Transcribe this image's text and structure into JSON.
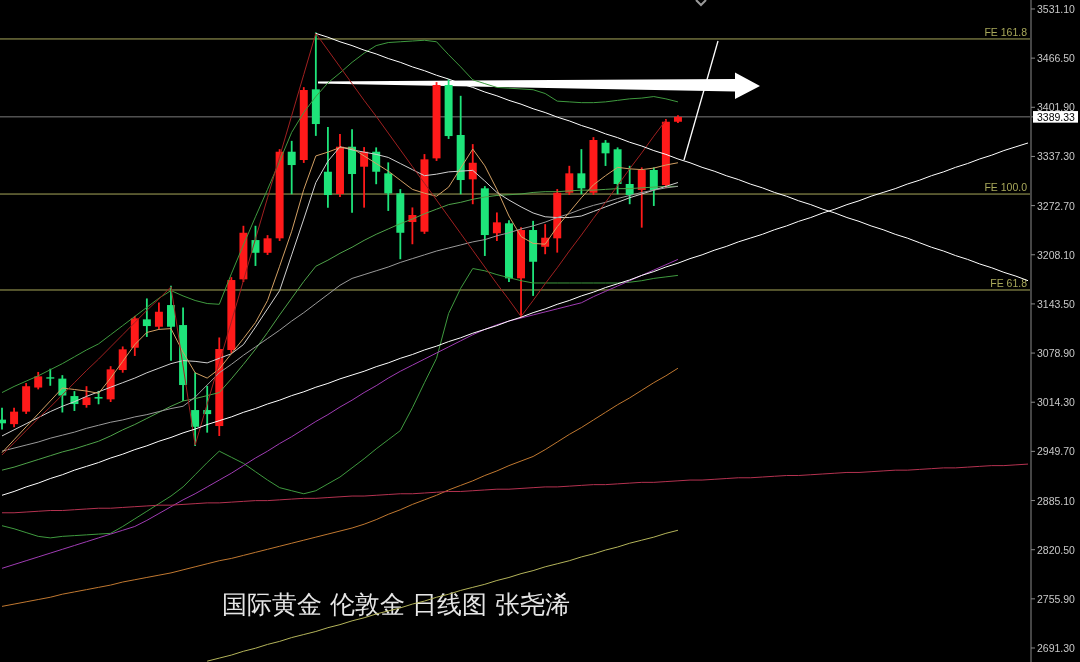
{
  "chart_data": {
    "type": "candlestick",
    "title": "国际黄金 伦敦金 日线图 张尧浠",
    "categories": [
      null,
      null,
      null,
      null,
      null,
      null,
      null,
      null,
      null,
      null,
      null,
      null,
      null,
      null,
      null,
      null,
      null,
      null,
      null,
      null,
      null,
      null,
      null,
      null,
      null,
      null,
      null,
      null,
      null,
      null,
      null,
      null,
      null,
      null,
      null,
      null,
      null,
      null,
      null,
      null,
      null,
      null,
      null,
      null,
      null,
      null,
      null,
      null,
      null,
      null,
      null,
      null,
      null,
      null,
      null,
      null,
      null,
      null,
      null,
      null,
      null,
      null,
      null,
      null,
      null,
      null,
      null,
      null,
      null,
      null,
      null,
      null,
      null,
      null,
      null,
      null,
      null,
      null,
      null,
      null,
      null,
      null,
      null,
      null,
      null,
      null
    ],
    "ohlc": [
      [
        2991.4,
        3006.0,
        2979.5,
        2986.6
      ],
      [
        2985.5,
        3006.0,
        2982.6,
        3001.9
      ],
      [
        3001.9,
        3038.3,
        3000.1,
        3035.3
      ],
      [
        3033.6,
        3052.9,
        3032.4,
        3048.3
      ],
      [
        3047.1,
        3057.1,
        3037.1,
        3045.3
      ],
      [
        3045.3,
        3048.7,
        3002.0,
        3023.1
      ],
      [
        3022.4,
        3027.7,
        3004.0,
        3011.9
      ],
      [
        3010.6,
        3034.2,
        3008.3,
        3020.7
      ],
      [
        3021.1,
        3028.0,
        3012.8,
        3019.1
      ],
      [
        3018.1,
        3060.5,
        3015.8,
        3057.5
      ],
      [
        3056.6,
        3086.4,
        3054.3,
        3083.8
      ],
      [
        3085.9,
        3126.6,
        3076.3,
        3124.5
      ],
      [
        3123.2,
        3149.5,
        3101.3,
        3114.4
      ],
      [
        3113.5,
        3144.2,
        3111.8,
        3133.2
      ],
      [
        3142.0,
        3166.1,
        3070.0,
        3113.5
      ],
      [
        3115.7,
        3137.7,
        3017.1,
        3036.9
      ],
      [
        3004.0,
        3052.2,
        2958.0,
        2982.0
      ],
      [
        3004.0,
        3034.6,
        2975.5,
        2998.7
      ],
      [
        2983.0,
        3098.2,
        2971.1,
        3084.2
      ],
      [
        3082.9,
        3177.5,
        3080.3,
        3174.9
      ],
      [
        3175.8,
        3245.0,
        3173.5,
        3237.0
      ],
      [
        3227.4,
        3245.0,
        3194.6,
        3210.7
      ],
      [
        3210.7,
        3232.7,
        3209.0,
        3229.7
      ],
      [
        3229.7,
        3345.7,
        3227.4,
        3343.5
      ],
      [
        3343.5,
        3356.6,
        3288.8,
        3326.0
      ],
      [
        3332.6,
        3427.2,
        3330.0,
        3424.6
      ],
      [
        3425.5,
        3499.1,
        3365.5,
        3379.9
      ],
      [
        3317.2,
        3374.7,
        3271.2,
        3286.6
      ],
      [
        3287.9,
        3365.5,
        3285.3,
        3350.1
      ],
      [
        3350.1,
        3372.0,
        3264.6,
        3314.2
      ],
      [
        3323.8,
        3348.4,
        3271.2,
        3343.5
      ],
      [
        3343.5,
        3348.0,
        3302.0,
        3317.2
      ],
      [
        3315.1,
        3328.3,
        3266.9,
        3288.8
      ],
      [
        3288.8,
        3293.2,
        3203.4,
        3237.0
      ],
      [
        3251.1,
        3269.1,
        3223.1,
        3260.3
      ],
      [
        3238.4,
        3339.2,
        3236.7,
        3333.5
      ],
      [
        3334.8,
        3433.8,
        3332.6,
        3431.2
      ],
      [
        3431.2,
        3437.7,
        3361.5,
        3364.1
      ],
      [
        3365.5,
        3415.8,
        3288.8,
        3306.3
      ],
      [
        3307.2,
        3352.3,
        3275.7,
        3329.0
      ],
      [
        3295.4,
        3297.1,
        3207.7,
        3234.0
      ],
      [
        3236.3,
        3262.5,
        3227.4,
        3250.7
      ],
      [
        3249.4,
        3252.4,
        3173.5,
        3177.1
      ],
      [
        3177.1,
        3243.2,
        3126.6,
        3240.6
      ],
      [
        3240.6,
        3251.5,
        3155.2,
        3198.9
      ],
      [
        3218.6,
        3247.2,
        3210.0,
        3230.5
      ],
      [
        3229.7,
        3293.2,
        3212.1,
        3289.6
      ],
      [
        3289.6,
        3323.8,
        3287.9,
        3315.1
      ],
      [
        3315.1,
        3345.7,
        3288.8,
        3295.4
      ],
      [
        3289.6,
        3361.5,
        3287.9,
        3358.9
      ],
      [
        3355.3,
        3357.6,
        3326.0,
        3341.4
      ],
      [
        3346.7,
        3348.0,
        3288.8,
        3301.1
      ],
      [
        3301.1,
        3323.8,
        3275.7,
        3286.6
      ],
      [
        3293.2,
        3321.7,
        3244.9,
        3319.5
      ],
      [
        3319.5,
        3321.7,
        3273.4,
        3293.2
      ],
      [
        3299.7,
        3385.2,
        3297.1,
        3382.9
      ],
      [
        3382.9,
        3390.4,
        3382.5,
        3389.33
      ],
      null,
      null,
      null,
      null,
      null,
      null,
      null,
      null,
      null,
      null,
      null,
      null,
      null,
      null,
      null,
      null,
      null,
      null,
      null,
      null,
      null,
      null,
      null,
      null,
      null,
      null,
      null,
      null,
      null
    ],
    "colors": [
      "#1ee47a",
      "#ff1a1a",
      "#ff1a1a",
      "#ff1a1a",
      "#1ee47a",
      "#1ee47a",
      "#1ee47a",
      "#ff1a1a",
      "#1ee47a",
      "#ff1a1a",
      "#ff1a1a",
      "#ff1a1a",
      "#1ee47a",
      "#ff1a1a",
      "#1ee47a",
      "#1ee47a",
      "#1ee47a",
      "#1ee47a",
      "#ff1a1a",
      "#ff1a1a",
      "#ff1a1a",
      "#1ee47a",
      "#ff1a1a",
      "#ff1a1a",
      "#1ee47a",
      "#ff1a1a",
      "#1ee47a",
      "#1ee47a",
      "#ff1a1a",
      "#1ee47a",
      "#ff1a1a",
      "#1ee47a",
      "#1ee47a",
      "#1ee47a",
      "#ff1a1a",
      "#ff1a1a",
      "#ff1a1a",
      "#1ee47a",
      "#1ee47a",
      "#ff1a1a",
      "#1ee47a",
      "#ff1a1a",
      "#1ee47a",
      "#ff1a1a",
      "#1ee47a",
      "#ff1a1a",
      "#ff1a1a",
      "#ff1a1a",
      "#1ee47a",
      "#ff1a1a",
      "#1ee47a",
      "#1ee47a",
      "#1ee47a",
      "#ff1a1a",
      "#1ee47a",
      "#ff1a1a",
      "#ff1a1a",
      null,
      null,
      null,
      null,
      null,
      null,
      null,
      null,
      null,
      null,
      null,
      null,
      null,
      null,
      null,
      null,
      null,
      null,
      null,
      null,
      null,
      null,
      null,
      null,
      null,
      null,
      null,
      null,
      null
    ],
    "series": [
      {
        "type": "line",
        "color": "#3f9a3f",
        "values": [
          3027,
          3035,
          3042,
          3049,
          3057,
          3065,
          3074,
          3083,
          3091,
          3103,
          3115,
          3127,
          3139,
          3151,
          3161,
          3154,
          3148,
          3144,
          3143,
          3183,
          3221,
          3258,
          3294,
          3331,
          3369,
          3395,
          3416,
          3434,
          3447,
          3461,
          3473,
          3483,
          3487,
          3488,
          3489,
          3490,
          3488,
          3471,
          3455,
          3438,
          3433,
          3428,
          3427,
          3426,
          3425,
          3420,
          3410,
          3409,
          3408,
          3408,
          3409,
          3411,
          3413,
          3414,
          3416,
          3413,
          3409,
          null,
          null,
          null,
          null,
          null,
          null,
          null,
          null,
          null,
          null,
          null,
          null,
          null,
          null,
          null,
          null,
          null,
          null,
          null,
          null,
          null,
          null,
          null,
          null,
          null,
          null,
          null,
          null,
          null
        ]
      },
      {
        "type": "line",
        "color": "#3f9a3f",
        "values": [
          2852,
          2848,
          2843,
          2838,
          2836,
          2838,
          2839,
          2840,
          2841,
          2842,
          2851,
          2861,
          2871,
          2881,
          2891,
          2903,
          2919,
          2935,
          2950,
          2942,
          2934,
          2923,
          2912,
          2902,
          2898,
          2894,
          2898,
          2907,
          2916,
          2928,
          2940,
          2953,
          2965,
          2977,
          3007,
          3040,
          3072,
          3131,
          3164,
          3190,
          3187,
          3182,
          3178,
          3174,
          3171,
          3171,
          3171,
          3171,
          3171,
          3171,
          3171,
          3171,
          3172,
          3174,
          3177,
          3179,
          3181,
          null,
          null,
          null,
          null,
          null,
          null,
          null,
          null,
          null,
          null,
          null,
          null,
          null,
          null,
          null,
          null,
          null,
          null,
          null,
          null,
          null,
          null,
          null,
          null,
          null,
          null,
          null,
          null,
          null
        ]
      },
      {
        "type": "line",
        "color": "#4fa34a",
        "values": [
          2925,
          2929,
          2934,
          2939,
          2944,
          2949,
          2953,
          2958,
          2963,
          2970,
          2978,
          2985,
          2993,
          3001,
          3009,
          3016,
          3019,
          3023,
          3027,
          3045,
          3064,
          3084,
          3106,
          3129,
          3151,
          3173,
          3193,
          3201,
          3210,
          3218,
          3227,
          3235,
          3242,
          3249,
          3255,
          3262,
          3268,
          3274,
          3277,
          3281,
          3284,
          3286,
          3287,
          3288,
          3290,
          3291,
          3291,
          3292,
          3293,
          3293,
          3294,
          3295,
          3295,
          3296,
          3297,
          3298,
          3298,
          null,
          null,
          null,
          null,
          null,
          null,
          null,
          null,
          null,
          null,
          null,
          null,
          null,
          null,
          null,
          null,
          null,
          null,
          null,
          null,
          null,
          null,
          null,
          null,
          null,
          null,
          null,
          null,
          null
        ]
      },
      {
        "type": "line",
        "color": "#d0d0d0",
        "values": [
          2970,
          2978,
          2986,
          2994,
          3002,
          3009,
          3015,
          3022,
          3028,
          3034,
          3040,
          3046,
          3053,
          3059,
          3065,
          3069,
          3068,
          3066,
          3072,
          3078,
          3090,
          3113,
          3137,
          3161,
          3208,
          3255,
          3303,
          3331,
          3350,
          3346,
          3343,
          3340,
          3336,
          3328,
          3320,
          3312,
          3314,
          3317,
          3318,
          3319,
          3305,
          3290,
          3280,
          3271,
          3263,
          3258,
          3257,
          3257,
          3259,
          3265,
          3271,
          3277,
          3283,
          3288,
          3293,
          3298,
          3303,
          null,
          null,
          null,
          null,
          null,
          null,
          null,
          null,
          null,
          null,
          null,
          null,
          null,
          null,
          null,
          null,
          null,
          null,
          null,
          null,
          null,
          null,
          null,
          null,
          null,
          null,
          null,
          null,
          null
        ]
      },
      {
        "type": "line",
        "color": "#9a9a9a",
        "values": [
          2950,
          2954,
          2958,
          2962,
          2967,
          2971,
          2975,
          2980,
          2984,
          2988,
          2991,
          2995,
          2998,
          3002,
          3006,
          3009,
          3021,
          3037,
          3053,
          3064,
          3076,
          3087,
          3098,
          3109,
          3121,
          3132,
          3144,
          3156,
          3168,
          3177,
          3182,
          3187,
          3192,
          3198,
          3203,
          3208,
          3213,
          3217,
          3221,
          3225,
          3228,
          3233,
          3237,
          3242,
          3246,
          3251,
          3257,
          3262,
          3268,
          3273,
          3277,
          3282,
          3286,
          3290,
          3293,
          3296,
          3298,
          null,
          null,
          null,
          null,
          null,
          null,
          null,
          null,
          null,
          null,
          null,
          null,
          null,
          null,
          null,
          null,
          null,
          null,
          null,
          null,
          null,
          null,
          null,
          null,
          null,
          null,
          null,
          null,
          null
        ]
      },
      {
        "type": "line",
        "color": "#d2a064",
        "values": [
          2948,
          2965,
          2982,
          2999,
          3016,
          3033,
          3031,
          3029,
          3026,
          3046,
          3068,
          3090,
          3106,
          3110,
          3111,
          3080,
          3053,
          3046,
          3058,
          3078,
          3098,
          3119,
          3148,
          3193,
          3239,
          3294,
          3338,
          3343,
          3349,
          3348,
          3338,
          3328,
          3318,
          3306,
          3294,
          3289,
          3285,
          3297,
          3322,
          3347,
          3325,
          3294,
          3259,
          3232,
          3223,
          3222,
          3245,
          3264,
          3283,
          3300,
          3312,
          3323,
          3321,
          3320,
          3322,
          3326,
          3329,
          null,
          null,
          null,
          null,
          null,
          null,
          null,
          null,
          null,
          null,
          null,
          null,
          null,
          null,
          null,
          null,
          null,
          null,
          null,
          null,
          null,
          null,
          null,
          null,
          null,
          null,
          null,
          null,
          null
        ]
      },
      {
        "type": "line",
        "color": "#a03cb4",
        "values": [
          2796,
          2801,
          2806,
          2811,
          2816,
          2821,
          2826,
          2831,
          2836,
          2841,
          2846,
          2851,
          2859,
          2868,
          2877,
          2886,
          2894,
          2903,
          2912,
          2921,
          2931,
          2941,
          2950,
          2960,
          2969,
          2979,
          2989,
          2998,
          3008,
          3017,
          3027,
          3036,
          3046,
          3055,
          3063,
          3071,
          3079,
          3087,
          3095,
          3103,
          3110,
          3116,
          3121,
          3125,
          3129,
          3133,
          3137,
          3141,
          3145,
          3153,
          3160,
          3167,
          3174,
          3181,
          3188,
          3195,
          3202,
          null,
          null,
          null,
          null,
          null,
          null,
          null,
          null,
          null,
          null,
          null,
          null,
          null,
          null,
          null,
          null,
          null,
          null,
          null,
          null,
          null,
          null,
          null,
          null,
          null,
          null,
          null,
          null,
          null
        ]
      },
      {
        "type": "line",
        "color": "#c07830",
        "values": [
          2746,
          2749,
          2752,
          2755,
          2758,
          2762,
          2765,
          2768,
          2771,
          2774,
          2778,
          2781,
          2784,
          2787,
          2790,
          2794,
          2798,
          2802,
          2806,
          2809,
          2813,
          2817,
          2821,
          2825,
          2829,
          2833,
          2837,
          2841,
          2845,
          2849,
          2854,
          2860,
          2867,
          2873,
          2880,
          2886,
          2892,
          2899,
          2905,
          2911,
          2918,
          2924,
          2931,
          2937,
          2943,
          2952,
          2962,
          2972,
          2981,
          2991,
          3001,
          3011,
          3020,
          3030,
          3040,
          3049,
          3059,
          null,
          null,
          null,
          null,
          null,
          null,
          null,
          null,
          null,
          null,
          null,
          null,
          null,
          null,
          null,
          null,
          null,
          null,
          null,
          null,
          null,
          null,
          null,
          null,
          null,
          null,
          null,
          null,
          null
        ]
      },
      {
        "type": "line",
        "color": "#b4b45a",
        "values": [
          null,
          null,
          null,
          null,
          null,
          null,
          null,
          null,
          null,
          null,
          null,
          null,
          null,
          null,
          null,
          null,
          null,
          2674,
          2678,
          2682,
          2687,
          2691,
          2696,
          2700,
          2705,
          2709,
          2713,
          2718,
          2722,
          2727,
          2731,
          2736,
          2740,
          2744,
          2749,
          2753,
          2758,
          2762,
          2767,
          2771,
          2775,
          2780,
          2784,
          2789,
          2793,
          2798,
          2802,
          2806,
          2811,
          2815,
          2820,
          2824,
          2829,
          2833,
          2837,
          2842,
          2846,
          null,
          null,
          null,
          null,
          null,
          null,
          null,
          null,
          null,
          null,
          null,
          null,
          null,
          null,
          null,
          null,
          null,
          null,
          null,
          null,
          null,
          null,
          null,
          null,
          null,
          null,
          null,
          null,
          null
        ]
      },
      {
        "type": "line",
        "color": "#b43250",
        "values": [
          2869,
          2869,
          2870,
          2871,
          2872,
          2872,
          2873,
          2874,
          2875,
          2875,
          2876,
          2877,
          2878,
          2879,
          2879,
          2880,
          2881,
          2882,
          2882,
          2883,
          2884,
          2885,
          2885,
          2886,
          2887,
          2888,
          2888,
          2889,
          2890,
          2891,
          2891,
          2892,
          2893,
          2894,
          2894,
          2895,
          2896,
          2897,
          2897,
          2898,
          2899,
          2900,
          2900,
          2901,
          2902,
          2903,
          2903,
          2904,
          2905,
          2906,
          2906,
          2907,
          2908,
          2909,
          2909,
          2910,
          2911,
          2912,
          2912,
          2913,
          2914,
          2915,
          2915,
          2916,
          2917,
          2918,
          2918,
          2919,
          2920,
          2921,
          2922,
          2922,
          2923,
          2924,
          2925,
          2925,
          2926,
          2927,
          2928,
          2928,
          2929,
          2930,
          2931,
          2931,
          2932,
          2933
        ]
      },
      {
        "type": "line",
        "color": "#a02020",
        "values": [
          2945,
          2961,
          2977,
          2993,
          3008,
          3024,
          3040,
          3056,
          3071,
          3087,
          3103,
          3119,
          3135,
          3150,
          3166,
          3062,
          2958,
          3012,
          3066,
          3120,
          3174,
          3229,
          3283,
          3337,
          3391,
          3445,
          3499,
          3477,
          3455,
          3433,
          3411,
          3390,
          3368,
          3346,
          3324,
          3302,
          3280,
          3258,
          3236,
          3214,
          3192,
          3170,
          3149,
          3127,
          3148,
          3170,
          3191,
          3213,
          3234,
          3256,
          3277,
          3299,
          3321,
          3342,
          3364,
          3385,
          null,
          null,
          null,
          null,
          null,
          null,
          null,
          null,
          null,
          null,
          null,
          null,
          null,
          null,
          null,
          null,
          null,
          null,
          null,
          null,
          null,
          null,
          null,
          null,
          null,
          null,
          null,
          null,
          null,
          null
        ]
      },
      {
        "type": "line",
        "color": "#ffffff",
        "values": [
          2892,
          2897,
          2903,
          2908,
          2914,
          2919,
          2925,
          2930,
          2935,
          2941,
          2946,
          2952,
          2957,
          2963,
          2968,
          2974,
          2979,
          2985,
          2990,
          2995,
          3001,
          3006,
          3012,
          3017,
          3023,
          3028,
          3034,
          3039,
          3045,
          3050,
          3055,
          3061,
          3066,
          3072,
          3077,
          3083,
          3088,
          3094,
          3099,
          3105,
          3110,
          3115,
          3121,
          3126,
          3132,
          3137,
          3143,
          3148,
          3154,
          3159,
          3165,
          3170,
          3175,
          3181,
          3186,
          3192,
          3197,
          3203,
          3208,
          3214,
          3219,
          3225,
          3230,
          3235,
          3241,
          3246,
          3252,
          3257,
          3263,
          3268,
          3274,
          3279,
          3285,
          3290,
          3295,
          3301,
          3306,
          3312,
          3317,
          3323,
          3328,
          3334,
          3339,
          3345,
          3350,
          3355
        ]
      },
      {
        "type": "line",
        "color": "#ffffff",
        "values": [
          null,
          null,
          null,
          null,
          null,
          null,
          null,
          null,
          null,
          null,
          null,
          null,
          null,
          null,
          null,
          null,
          null,
          null,
          null,
          null,
          null,
          null,
          null,
          null,
          null,
          null,
          3499,
          3494,
          3488,
          3483,
          3477,
          3472,
          3466,
          3461,
          3455,
          3450,
          3444,
          3439,
          3433,
          3428,
          3422,
          3417,
          3411,
          3406,
          3400,
          3395,
          3389,
          3384,
          3378,
          3373,
          3367,
          3362,
          3356,
          3351,
          3345,
          3340,
          3334,
          3329,
          3323,
          3318,
          3312,
          3307,
          3301,
          3296,
          3290,
          3285,
          3279,
          3274,
          3268,
          3263,
          3257,
          3252,
          3246,
          3241,
          3235,
          3230,
          3224,
          3218,
          3213,
          3207,
          3202,
          3196,
          3191,
          3185,
          3180,
          3174
        ]
      }
    ],
    "ylim": [
      2672.9,
      3542.9
    ],
    "yticks": [
      {
        "value": 3531.1,
        "label": "3531.10"
      },
      {
        "value": 3466.5,
        "label": "3466.50"
      },
      {
        "value": 3401.9,
        "label": "3401.90"
      },
      3389.33,
      {
        "value": 3337.3,
        "label": "3337.30"
      },
      {
        "value": 3272.7,
        "label": "3272.70"
      },
      {
        "value": 3208.1,
        "label": "3208.10"
      },
      {
        "value": 3143.5,
        "label": "3143.50"
      },
      {
        "value": 3078.9,
        "label": "3078.90"
      },
      {
        "value": 3014.3,
        "label": "3014.30"
      },
      {
        "value": 2949.7,
        "label": "2949.70"
      },
      {
        "value": 2885.1,
        "label": "2885.10"
      },
      {
        "value": 2820.5,
        "label": "2820.50"
      },
      {
        "value": 2755.9,
        "label": "2755.90"
      },
      {
        "value": 2691.3,
        "label": "2691.30"
      }
    ],
    "ref_lines": [
      {
        "axis": "y",
        "value": 3491.7,
        "label": "FE 161.8",
        "color": "#a8a85a"
      },
      {
        "axis": "y",
        "value": 3287.9,
        "label": "FE 100.0",
        "color": "#a8a85a"
      },
      {
        "axis": "y",
        "value": 3161.8,
        "label": "FE 61.8",
        "color": "#a8a85a"
      },
      {
        "axis": "y",
        "value": 3389.33,
        "color": "#7a7a7a"
      }
    ],
    "tick_labels": "y"
  }
}
